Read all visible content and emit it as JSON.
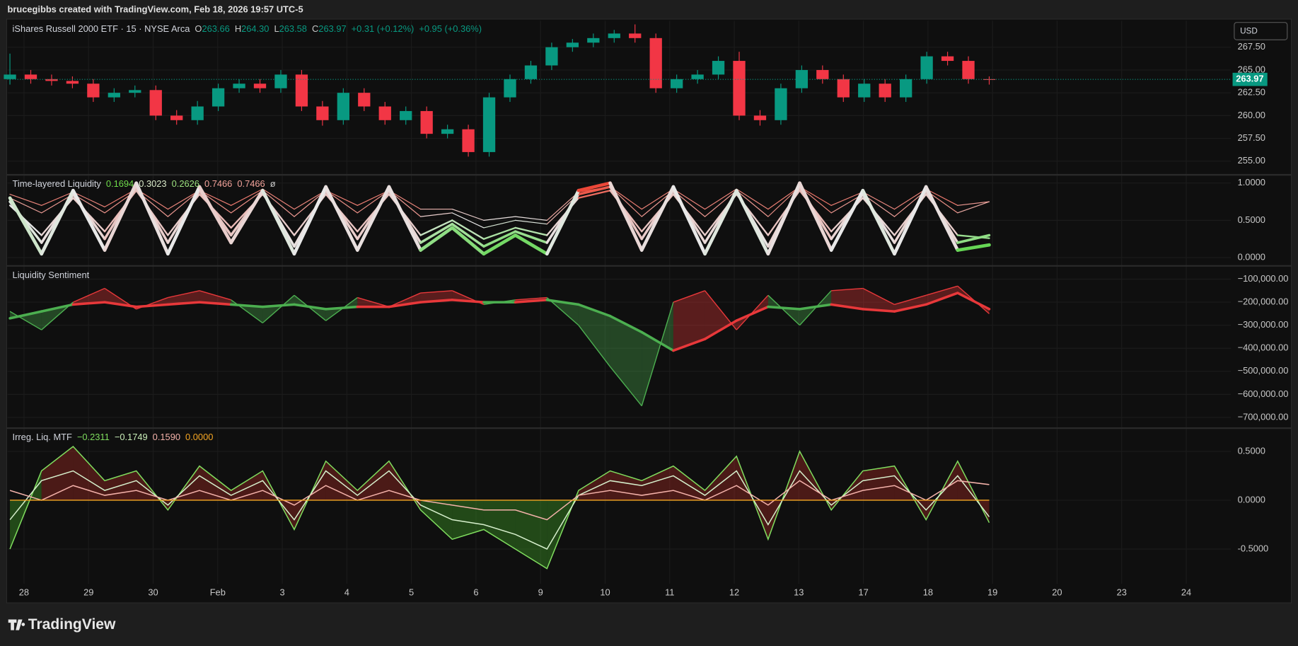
{
  "header": {
    "text": "brucegibbs created with TradingView.com, Feb 18, 2026 19:57 UTC-5"
  },
  "currency": "USD",
  "brand": "TradingView",
  "x_axis": {
    "labels": [
      "28",
      "29",
      "30",
      "Feb",
      "3",
      "4",
      "5",
      "6",
      "9",
      "10",
      "11",
      "12",
      "13",
      "17",
      "18",
      "19",
      "20",
      "23",
      "24"
    ]
  },
  "chart_data": [
    {
      "type": "candlestick",
      "title": "iShares Russell 2000 ETF · 15 · NYSE Arca",
      "ohlc": [
        {
          "key": "O",
          "value": "263.66"
        },
        {
          "key": "H",
          "value": "264.30"
        },
        {
          "key": "L",
          "value": "263.58"
        },
        {
          "key": "C",
          "value": "263.97"
        }
      ],
      "change": [
        "+0.31 (+0.12%)",
        "+0.95 (+0.36%)"
      ],
      "up_color": "#089981",
      "down_color": "#f23645",
      "last_price": 263.97,
      "ylim": [
        253.6,
        270.4
      ],
      "yticks": [
        {
          "value": 255,
          "label": "255.00"
        },
        {
          "value": 257.5,
          "label": "257.50"
        },
        {
          "value": 260,
          "label": "260.00"
        },
        {
          "value": 262.5,
          "label": "262.50"
        },
        {
          "value": 265,
          "label": "265.00"
        },
        {
          "value": 267.5,
          "label": "267.50"
        }
      ],
      "open": [
        264,
        264.5,
        264,
        263.8,
        263.5,
        262,
        262.5,
        262.8,
        260,
        259.5,
        261,
        263,
        263.5,
        263,
        264.5,
        261,
        259.5,
        262.5,
        261,
        259.5,
        260.5,
        258,
        258.5,
        256,
        262,
        264,
        265.5,
        267.5,
        268,
        268.5,
        269,
        268.5,
        263,
        264,
        264.5,
        266,
        260,
        259.5,
        263,
        265,
        264,
        262,
        263.5,
        262,
        264,
        266.5,
        266,
        264
      ],
      "high": [
        266.8,
        265,
        264.5,
        264.3,
        264,
        263,
        263.3,
        263.3,
        260.6,
        261.6,
        263.5,
        264,
        264,
        265,
        265,
        261.6,
        263,
        263,
        261.5,
        261,
        261,
        259,
        259,
        262.5,
        264.5,
        266,
        268,
        268.4,
        269,
        269.4,
        270,
        269,
        264.5,
        265,
        266.5,
        267,
        260.6,
        263.5,
        265.5,
        265.5,
        264.5,
        264,
        264,
        264.5,
        267,
        267,
        266.5,
        264.3
      ],
      "low": [
        263.4,
        263.5,
        263.3,
        263,
        261.5,
        261.5,
        262,
        259.5,
        259,
        259,
        260.5,
        262.5,
        262.5,
        262.5,
        260.5,
        258.9,
        259,
        260.5,
        259,
        259,
        257.5,
        257.5,
        255.5,
        255.5,
        261.5,
        263.5,
        265,
        267,
        267.5,
        268,
        268,
        262.5,
        262.5,
        263.5,
        264,
        259.5,
        258.9,
        259,
        262.5,
        263.5,
        261.5,
        261.5,
        261.5,
        261.5,
        263.5,
        265.5,
        263.5,
        263.4
      ],
      "close": [
        264.5,
        264,
        263.8,
        263.5,
        262,
        262.5,
        262.8,
        260,
        259.5,
        261,
        263,
        263.5,
        263,
        264.5,
        261,
        259.5,
        262.5,
        261,
        259.5,
        260.5,
        258,
        258.5,
        256,
        262,
        264,
        265.5,
        267.5,
        268,
        268.5,
        269,
        268.5,
        263,
        264,
        264.5,
        266,
        260,
        259.5,
        263,
        265,
        264,
        262,
        263.5,
        262,
        264,
        266.5,
        266,
        264,
        263.97
      ]
    },
    {
      "type": "multiline",
      "title": "Time-layered Liquidity",
      "suffix": "ø",
      "colormap": [
        "#36d11f",
        "#e8e8e8",
        "#ee3524"
      ],
      "legend": [
        {
          "value": 0.1694,
          "label": "0.1694",
          "color": "#6fdc4a"
        },
        {
          "value": 0.3023,
          "label": "0.3023",
          "color": "#d8e8c8"
        },
        {
          "value": 0.2626,
          "label": "0.2626",
          "color": "#9be07e"
        },
        {
          "value": 0.7466,
          "label": "0.7466",
          "color": "#f2a29a"
        },
        {
          "value": 0.7466,
          "label": "0.7466",
          "color": "#f2a29a"
        }
      ],
      "ylim": [
        -0.1,
        1.1
      ],
      "yticks": [
        {
          "value": 0,
          "label": "0.0000"
        },
        {
          "value": 0.5,
          "label": "0.5000"
        },
        {
          "value": 1,
          "label": "1.0000"
        }
      ],
      "series": [
        {
          "width": 4,
          "values": [
            0.8,
            0.05,
            0.9,
            0.1,
            1.0,
            0.05,
            0.95,
            0.2,
            0.9,
            0.05,
            0.95,
            0.1,
            0.95,
            0.1,
            0.4,
            0.05,
            0.3,
            0.05,
            0.9,
            1.0,
            0.1,
            0.95,
            0.05,
            0.9,
            0.05,
            1.0,
            0.1,
            0.9,
            0.05,
            0.95,
            0.1,
            0.17
          ]
        },
        {
          "width": 3,
          "values": [
            0.75,
            0.2,
            0.85,
            0.25,
            0.95,
            0.2,
            0.9,
            0.3,
            0.88,
            0.15,
            0.9,
            0.25,
            0.9,
            0.2,
            0.45,
            0.15,
            0.35,
            0.2,
            0.85,
            0.95,
            0.25,
            0.9,
            0.2,
            0.88,
            0.15,
            0.95,
            0.25,
            0.85,
            0.2,
            0.9,
            0.2,
            0.3
          ]
        },
        {
          "width": 2,
          "values": [
            0.7,
            0.3,
            0.8,
            0.35,
            0.9,
            0.3,
            0.85,
            0.4,
            0.85,
            0.3,
            0.85,
            0.35,
            0.85,
            0.3,
            0.5,
            0.25,
            0.4,
            0.3,
            0.8,
            0.9,
            0.35,
            0.85,
            0.3,
            0.85,
            0.3,
            0.9,
            0.35,
            0.8,
            0.3,
            0.85,
            0.3,
            0.26
          ]
        },
        {
          "width": 1,
          "values": [
            0.8,
            0.6,
            0.85,
            0.6,
            0.9,
            0.55,
            0.9,
            0.6,
            0.9,
            0.55,
            0.9,
            0.6,
            0.9,
            0.55,
            0.6,
            0.4,
            0.5,
            0.45,
            0.85,
            0.95,
            0.55,
            0.9,
            0.55,
            0.9,
            0.55,
            0.95,
            0.6,
            0.85,
            0.55,
            0.9,
            0.6,
            0.75
          ]
        },
        {
          "width": 1,
          "values": [
            0.85,
            0.7,
            0.88,
            0.68,
            0.92,
            0.65,
            0.9,
            0.7,
            0.92,
            0.65,
            0.9,
            0.7,
            0.9,
            0.65,
            0.65,
            0.5,
            0.55,
            0.5,
            0.88,
            0.95,
            0.65,
            0.92,
            0.65,
            0.92,
            0.65,
            0.95,
            0.7,
            0.88,
            0.65,
            0.92,
            0.7,
            0.75
          ]
        }
      ]
    },
    {
      "type": "band",
      "title": "Liquidity Sentiment",
      "up_color": "#e8383a",
      "down_color": "#4caf50",
      "ylim": [
        -743000,
        -46000
      ],
      "yticks": [
        {
          "value": -700000,
          "label": "−700,000.00"
        },
        {
          "value": -600000,
          "label": "−600,000.00"
        },
        {
          "value": -500000,
          "label": "−500,000.00"
        },
        {
          "value": -400000,
          "label": "−400,000.00"
        },
        {
          "value": -300000,
          "label": "−300,000.00"
        },
        {
          "value": -200000,
          "label": "−200,000.00"
        },
        {
          "value": -100000,
          "label": "−100,000.00"
        }
      ],
      "series": [
        {
          "values": [
            -240000,
            -320000,
            -200000,
            -140000,
            -230000,
            -180000,
            -150000,
            -190000,
            -290000,
            -170000,
            -280000,
            -180000,
            -220000,
            -160000,
            -150000,
            -210000,
            -190000,
            -180000,
            -300000,
            -480000,
            -650000,
            -200000,
            -150000,
            -320000,
            -170000,
            -300000,
            -150000,
            -140000,
            -210000,
            -170000,
            -130000,
            -250000
          ]
        },
        {
          "values": [
            -270000,
            -240000,
            -210000,
            -200000,
            -220000,
            -210000,
            -200000,
            -210000,
            -220000,
            -210000,
            -230000,
            -220000,
            -220000,
            -200000,
            -190000,
            -200000,
            -200000,
            -190000,
            -210000,
            -260000,
            -330000,
            -410000,
            -360000,
            -280000,
            -220000,
            -230000,
            -210000,
            -230000,
            -240000,
            -210000,
            -160000,
            -230000
          ]
        }
      ]
    },
    {
      "type": "oscillator",
      "title": "Irreg. Liq. MTF",
      "up_color": "#d8342a",
      "down_color": "#4fcf2e",
      "baseline": 0,
      "baseline_color": "#f5a623",
      "legend": [
        {
          "value": -0.2311,
          "label": "−0.2311",
          "color": "#7fdc5e"
        },
        {
          "value": -0.1749,
          "label": "−0.1749",
          "color": "#c9eeb8"
        },
        {
          "value": 0.159,
          "label": "0.1590",
          "color": "#f4b2aa"
        },
        {
          "value": 0,
          "label": "0.0000",
          "color": "#f5a623"
        }
      ],
      "ylim": [
        -0.856,
        0.729
      ],
      "yticks": [
        {
          "value": -0.5,
          "label": "-0.5000"
        },
        {
          "value": 0,
          "label": "0.0000"
        },
        {
          "value": 0.5,
          "label": "0.5000"
        }
      ],
      "series": [
        {
          "color": "#7fdc5e",
          "values": [
            -0.5,
            0.3,
            0.55,
            0.2,
            0.3,
            -0.1,
            0.35,
            0.1,
            0.3,
            -0.3,
            0.4,
            0.1,
            0.4,
            -0.1,
            -0.4,
            -0.3,
            -0.5,
            -0.7,
            0.1,
            0.3,
            0.2,
            0.35,
            0.1,
            0.45,
            -0.4,
            0.5,
            -0.1,
            0.3,
            0.35,
            -0.2,
            0.4,
            -0.23
          ]
        },
        {
          "color": "#d6efcc",
          "values": [
            -0.2,
            0.2,
            0.3,
            0.1,
            0.2,
            -0.05,
            0.25,
            0.05,
            0.2,
            -0.2,
            0.3,
            0.05,
            0.3,
            -0.05,
            -0.2,
            -0.25,
            -0.35,
            -0.5,
            0.05,
            0.2,
            0.15,
            0.25,
            0.05,
            0.3,
            -0.25,
            0.3,
            -0.05,
            0.2,
            0.25,
            -0.1,
            0.25,
            -0.17
          ]
        },
        {
          "color": "#f4b2aa",
          "values": [
            0.1,
            0,
            0.15,
            0.05,
            0.1,
            0,
            0.1,
            0,
            0.1,
            -0.05,
            0.15,
            0,
            0.1,
            0,
            -0.05,
            -0.1,
            -0.1,
            -0.2,
            0.05,
            0.1,
            0.05,
            0.1,
            0,
            0.15,
            -0.05,
            0.2,
            0,
            0.1,
            0.15,
            0,
            0.2,
            0.16
          ]
        }
      ]
    }
  ]
}
